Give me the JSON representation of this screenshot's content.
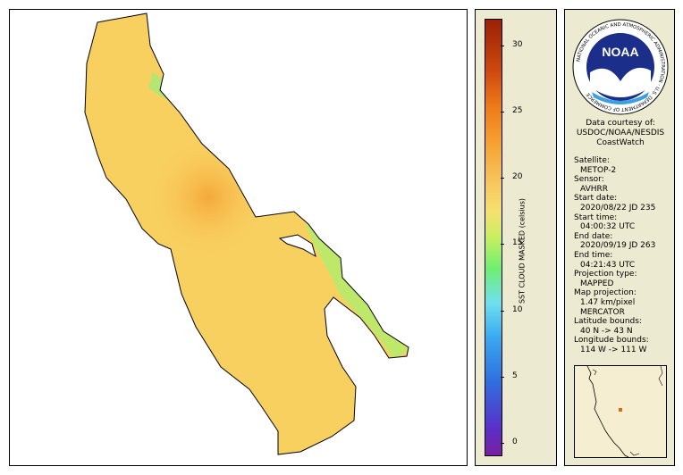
{
  "colorbar": {
    "title": "SST CLOUD MASKED (celsius)",
    "ticks": [
      "30",
      "25",
      "20",
      "15",
      "10",
      "5",
      "0"
    ],
    "range": [
      -1,
      32
    ]
  },
  "logo": {
    "text": "NOAA",
    "ring_text": "NATIONAL OCEANIC AND ATMOSPHERIC ADMINISTRATION · U.S. DEPARTMENT OF COMMERCE"
  },
  "credit": {
    "line1": "Data courtesy of:",
    "line2": "USDOC/NOAA/NESDIS",
    "line3": "CoastWatch"
  },
  "metadata": [
    {
      "label": "Satellite:",
      "value": "METOP-2"
    },
    {
      "label": "Sensor:",
      "value": "AVHRR"
    },
    {
      "label": "Start date:",
      "value": "2020/08/22 JD 235"
    },
    {
      "label": "Start time:",
      "value": "04:00:32 UTC"
    },
    {
      "label": "End date:",
      "value": "2020/09/19 JD 263"
    },
    {
      "label": "End time:",
      "value": "04:21:43 UTC"
    },
    {
      "label": "Projection type:",
      "value": "MAPPED"
    },
    {
      "label": "Map projection:",
      "value": "1.47 km/pixel"
    },
    {
      "label": "",
      "value": "MERCATOR"
    },
    {
      "label": "Latitude bounds:",
      "value": "40 N -> 43 N"
    },
    {
      "label": "Longitude bounds:",
      "value": "114 W -> 111 W"
    }
  ],
  "colors": {
    "panel_bg": "#ecead0",
    "lake_main": "#f8d060",
    "lake_warm": "#f6a83a",
    "lake_cool": "#8fe870"
  }
}
